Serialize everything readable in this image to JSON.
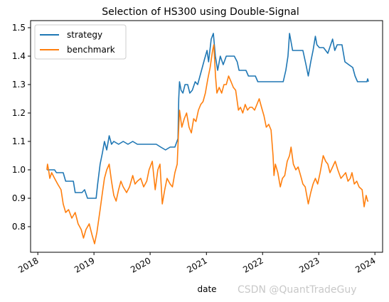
{
  "watermark": "CSDN @QuantTradeGuy",
  "chart_data": {
    "type": "line",
    "title": "Selection of HS300 using Double-Signal",
    "xlabel": "date",
    "ylabel": "",
    "x_range": [
      "2017-11-15",
      "2024-02-20"
    ],
    "ylim": [
      0.71,
      1.525
    ],
    "y_ticks": [
      0.8,
      0.9,
      1.0,
      1.1,
      1.2,
      1.3,
      1.4,
      1.5
    ],
    "y_tick_labels": [
      "0.8",
      "0.9",
      "1.0",
      "1.1",
      "1.2",
      "1.3",
      "1.4",
      "1.5"
    ],
    "x_ticks": [
      "2018-01-01",
      "2019-01-01",
      "2020-01-01",
      "2021-01-01",
      "2022-01-01",
      "2023-01-01",
      "2024-01-01"
    ],
    "x_tick_labels": [
      "2018",
      "2019",
      "2020",
      "2021",
      "2022",
      "2023",
      "2024"
    ],
    "grid": false,
    "legend_position": "top-left",
    "series": [
      {
        "name": "strategy",
        "color": "#1f77b4",
        "points": [
          [
            "2018-03-01",
            1.0
          ],
          [
            "2018-03-20",
            1.0
          ],
          [
            "2018-04-20",
            1.0
          ],
          [
            "2018-05-02",
            0.99
          ],
          [
            "2018-06-15",
            0.99
          ],
          [
            "2018-07-01",
            0.96
          ],
          [
            "2018-08-20",
            0.96
          ],
          [
            "2018-09-01",
            0.92
          ],
          [
            "2018-10-15",
            0.92
          ],
          [
            "2018-11-01",
            0.93
          ],
          [
            "2018-11-20",
            0.9
          ],
          [
            "2019-01-15",
            0.9
          ],
          [
            "2019-01-25",
            0.95
          ],
          [
            "2019-02-10",
            1.02
          ],
          [
            "2019-02-25",
            1.06
          ],
          [
            "2019-03-10",
            1.1
          ],
          [
            "2019-03-25",
            1.07
          ],
          [
            "2019-04-10",
            1.12
          ],
          [
            "2019-04-25",
            1.09
          ],
          [
            "2019-05-10",
            1.1
          ],
          [
            "2019-06-10",
            1.09
          ],
          [
            "2019-07-10",
            1.1
          ],
          [
            "2019-08-10",
            1.09
          ],
          [
            "2019-09-10",
            1.1
          ],
          [
            "2019-10-10",
            1.09
          ],
          [
            "2019-11-10",
            1.09
          ],
          [
            "2019-12-10",
            1.09
          ],
          [
            "2020-01-10",
            1.09
          ],
          [
            "2020-02-10",
            1.09
          ],
          [
            "2020-03-10",
            1.08
          ],
          [
            "2020-04-10",
            1.07
          ],
          [
            "2020-05-10",
            1.08
          ],
          [
            "2020-06-10",
            1.08
          ],
          [
            "2020-06-30",
            1.11
          ],
          [
            "2020-07-05",
            1.25
          ],
          [
            "2020-07-10",
            1.31
          ],
          [
            "2020-07-20",
            1.28
          ],
          [
            "2020-08-01",
            1.27
          ],
          [
            "2020-08-15",
            1.3
          ],
          [
            "2020-09-01",
            1.3
          ],
          [
            "2020-09-15",
            1.27
          ],
          [
            "2020-10-01",
            1.28
          ],
          [
            "2020-10-20",
            1.31
          ],
          [
            "2020-11-05",
            1.3
          ],
          [
            "2020-11-20",
            1.33
          ],
          [
            "2020-12-05",
            1.36
          ],
          [
            "2020-12-20",
            1.39
          ],
          [
            "2021-01-05",
            1.42
          ],
          [
            "2021-01-15",
            1.38
          ],
          [
            "2021-02-01",
            1.46
          ],
          [
            "2021-02-15",
            1.48
          ],
          [
            "2021-02-28",
            1.4
          ],
          [
            "2021-03-15",
            1.35
          ],
          [
            "2021-04-01",
            1.4
          ],
          [
            "2021-04-20",
            1.37
          ],
          [
            "2021-05-10",
            1.4
          ],
          [
            "2021-05-20",
            1.4
          ],
          [
            "2021-06-01",
            1.4
          ],
          [
            "2021-07-01",
            1.4
          ],
          [
            "2021-07-20",
            1.38
          ],
          [
            "2021-08-01",
            1.35
          ],
          [
            "2021-09-15",
            1.35
          ],
          [
            "2021-10-01",
            1.33
          ],
          [
            "2021-11-15",
            1.33
          ],
          [
            "2021-12-01",
            1.31
          ],
          [
            "2022-05-15",
            1.31
          ],
          [
            "2022-06-01",
            1.35
          ],
          [
            "2022-06-15",
            1.4
          ],
          [
            "2022-06-25",
            1.48
          ],
          [
            "2022-07-05",
            1.45
          ],
          [
            "2022-07-15",
            1.42
          ],
          [
            "2022-09-01",
            1.42
          ],
          [
            "2022-09-20",
            1.42
          ],
          [
            "2022-10-10",
            1.37
          ],
          [
            "2022-10-25",
            1.33
          ],
          [
            "2022-11-10",
            1.38
          ],
          [
            "2022-11-25",
            1.42
          ],
          [
            "2022-12-10",
            1.47
          ],
          [
            "2022-12-20",
            1.44
          ],
          [
            "2023-01-05",
            1.43
          ],
          [
            "2023-02-01",
            1.43
          ],
          [
            "2023-03-01",
            1.41
          ],
          [
            "2023-04-01",
            1.46
          ],
          [
            "2023-04-15",
            1.42
          ],
          [
            "2023-05-01",
            1.44
          ],
          [
            "2023-06-01",
            1.44
          ],
          [
            "2023-06-20",
            1.38
          ],
          [
            "2023-07-15",
            1.37
          ],
          [
            "2023-08-10",
            1.36
          ],
          [
            "2023-08-25",
            1.33
          ],
          [
            "2023-09-10",
            1.31
          ],
          [
            "2023-11-10",
            1.31
          ],
          [
            "2023-11-15",
            1.32
          ],
          [
            "2023-11-20",
            1.31
          ]
        ]
      },
      {
        "name": "benchmark",
        "color": "#ff7f0e",
        "points": [
          [
            "2018-03-01",
            1.0
          ],
          [
            "2018-03-05",
            1.02
          ],
          [
            "2018-03-12",
            1.0
          ],
          [
            "2018-03-20",
            0.97
          ],
          [
            "2018-04-01",
            0.99
          ],
          [
            "2018-04-20",
            0.97
          ],
          [
            "2018-05-10",
            0.95
          ],
          [
            "2018-06-01",
            0.93
          ],
          [
            "2018-06-15",
            0.88
          ],
          [
            "2018-07-01",
            0.85
          ],
          [
            "2018-07-20",
            0.86
          ],
          [
            "2018-08-10",
            0.83
          ],
          [
            "2018-09-01",
            0.85
          ],
          [
            "2018-09-20",
            0.81
          ],
          [
            "2018-10-10",
            0.79
          ],
          [
            "2018-10-25",
            0.76
          ],
          [
            "2018-11-10",
            0.79
          ],
          [
            "2018-12-01",
            0.81
          ],
          [
            "2018-12-20",
            0.77
          ],
          [
            "2019-01-05",
            0.74
          ],
          [
            "2019-01-20",
            0.78
          ],
          [
            "2019-02-10",
            0.86
          ],
          [
            "2019-02-25",
            0.92
          ],
          [
            "2019-03-10",
            0.97
          ],
          [
            "2019-03-25",
            1.0
          ],
          [
            "2019-04-10",
            1.02
          ],
          [
            "2019-04-25",
            0.96
          ],
          [
            "2019-05-10",
            0.91
          ],
          [
            "2019-05-25",
            0.89
          ],
          [
            "2019-06-10",
            0.93
          ],
          [
            "2019-06-25",
            0.96
          ],
          [
            "2019-07-10",
            0.94
          ],
          [
            "2019-08-01",
            0.92
          ],
          [
            "2019-08-20",
            0.94
          ],
          [
            "2019-09-10",
            0.98
          ],
          [
            "2019-09-25",
            0.95
          ],
          [
            "2019-10-10",
            0.96
          ],
          [
            "2019-11-01",
            0.97
          ],
          [
            "2019-11-20",
            0.94
          ],
          [
            "2019-12-10",
            0.96
          ],
          [
            "2019-12-25",
            1.0
          ],
          [
            "2020-01-15",
            1.03
          ],
          [
            "2020-02-03",
            0.93
          ],
          [
            "2020-02-20",
            1.0
          ],
          [
            "2020-03-05",
            1.02
          ],
          [
            "2020-03-20",
            0.88
          ],
          [
            "2020-04-05",
            0.93
          ],
          [
            "2020-04-20",
            0.97
          ],
          [
            "2020-05-10",
            0.95
          ],
          [
            "2020-05-25",
            0.94
          ],
          [
            "2020-06-10",
            0.99
          ],
          [
            "2020-06-25",
            1.02
          ],
          [
            "2020-07-05",
            1.15
          ],
          [
            "2020-07-10",
            1.21
          ],
          [
            "2020-07-25",
            1.15
          ],
          [
            "2020-08-10",
            1.18
          ],
          [
            "2020-08-25",
            1.2
          ],
          [
            "2020-09-10",
            1.15
          ],
          [
            "2020-09-25",
            1.13
          ],
          [
            "2020-10-10",
            1.18
          ],
          [
            "2020-10-25",
            1.17
          ],
          [
            "2020-11-10",
            1.21
          ],
          [
            "2020-11-25",
            1.23
          ],
          [
            "2020-12-10",
            1.24
          ],
          [
            "2020-12-25",
            1.27
          ],
          [
            "2021-01-10",
            1.32
          ],
          [
            "2021-01-25",
            1.36
          ],
          [
            "2021-02-10",
            1.42
          ],
          [
            "2021-02-18",
            1.44
          ],
          [
            "2021-03-01",
            1.33
          ],
          [
            "2021-03-10",
            1.27
          ],
          [
            "2021-03-25",
            1.29
          ],
          [
            "2021-04-10",
            1.27
          ],
          [
            "2021-04-25",
            1.3
          ],
          [
            "2021-05-10",
            1.3
          ],
          [
            "2021-05-25",
            1.33
          ],
          [
            "2021-06-10",
            1.31
          ],
          [
            "2021-06-25",
            1.29
          ],
          [
            "2021-07-10",
            1.28
          ],
          [
            "2021-07-28",
            1.21
          ],
          [
            "2021-08-10",
            1.22
          ],
          [
            "2021-08-25",
            1.2
          ],
          [
            "2021-09-10",
            1.23
          ],
          [
            "2021-09-25",
            1.21
          ],
          [
            "2021-10-10",
            1.22
          ],
          [
            "2021-10-25",
            1.22
          ],
          [
            "2021-11-10",
            1.21
          ],
          [
            "2021-11-25",
            1.23
          ],
          [
            "2021-12-10",
            1.25
          ],
          [
            "2021-12-25",
            1.22
          ],
          [
            "2022-01-10",
            1.19
          ],
          [
            "2022-01-25",
            1.15
          ],
          [
            "2022-02-10",
            1.16
          ],
          [
            "2022-02-25",
            1.14
          ],
          [
            "2022-03-10",
            1.05
          ],
          [
            "2022-03-16",
            0.98
          ],
          [
            "2022-03-25",
            1.02
          ],
          [
            "2022-04-10",
            0.99
          ],
          [
            "2022-04-26",
            0.94
          ],
          [
            "2022-05-10",
            0.97
          ],
          [
            "2022-05-25",
            0.98
          ],
          [
            "2022-06-10",
            1.03
          ],
          [
            "2022-06-25",
            1.05
          ],
          [
            "2022-07-05",
            1.08
          ],
          [
            "2022-07-20",
            1.02
          ],
          [
            "2022-08-05",
            1.0
          ],
          [
            "2022-08-20",
            1.01
          ],
          [
            "2022-09-05",
            0.98
          ],
          [
            "2022-09-20",
            0.95
          ],
          [
            "2022-10-05",
            0.94
          ],
          [
            "2022-10-25",
            0.88
          ],
          [
            "2022-11-10",
            0.92
          ],
          [
            "2022-11-25",
            0.95
          ],
          [
            "2022-12-10",
            0.97
          ],
          [
            "2022-12-25",
            0.95
          ],
          [
            "2023-01-10",
            0.99
          ],
          [
            "2023-01-30",
            1.05
          ],
          [
            "2023-02-15",
            1.03
          ],
          [
            "2023-03-01",
            1.02
          ],
          [
            "2023-03-15",
            0.99
          ],
          [
            "2023-04-01",
            1.01
          ],
          [
            "2023-04-18",
            1.03
          ],
          [
            "2023-05-05",
            1.0
          ],
          [
            "2023-05-25",
            0.97
          ],
          [
            "2023-06-10",
            0.98
          ],
          [
            "2023-06-25",
            0.99
          ],
          [
            "2023-07-10",
            0.96
          ],
          [
            "2023-07-25",
            0.97
          ],
          [
            "2023-08-05",
            0.99
          ],
          [
            "2023-08-20",
            0.95
          ],
          [
            "2023-09-05",
            0.96
          ],
          [
            "2023-09-20",
            0.94
          ],
          [
            "2023-10-10",
            0.93
          ],
          [
            "2023-10-23",
            0.87
          ],
          [
            "2023-11-05",
            0.91
          ],
          [
            "2023-11-15",
            0.89
          ],
          [
            "2023-11-20",
            0.89
          ]
        ]
      }
    ]
  }
}
